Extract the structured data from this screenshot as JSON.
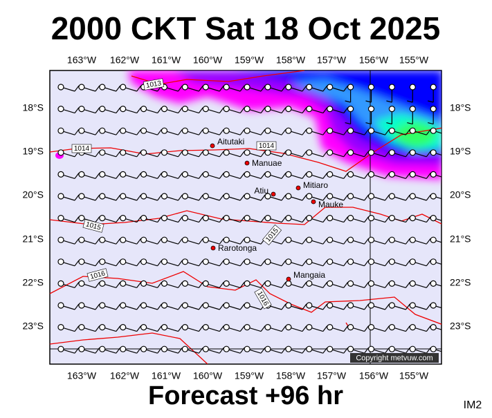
{
  "title": "2000 CKT Sat 18 Oct 2025",
  "footer": "Forecast +96 hr",
  "corner_label": "IM2",
  "map": {
    "lon_labels": [
      "163°W",
      "162°W",
      "161°W",
      "160°W",
      "159°W",
      "158°W",
      "157°W",
      "156°W",
      "155°W"
    ],
    "lat_labels": [
      "18°S",
      "19°S",
      "20°S",
      "21°S",
      "22°S",
      "23°S"
    ],
    "places": [
      "Aitutaki",
      "Manuae",
      "Mitiaro",
      "Atiu",
      "Mauke",
      "Rarotonga",
      "Mangaia"
    ],
    "isobar_labels": [
      "1013",
      "1014",
      "1014",
      "1015",
      "1015",
      "1016",
      "1016"
    ],
    "copyright": "Copyright metvuw.com"
  }
}
